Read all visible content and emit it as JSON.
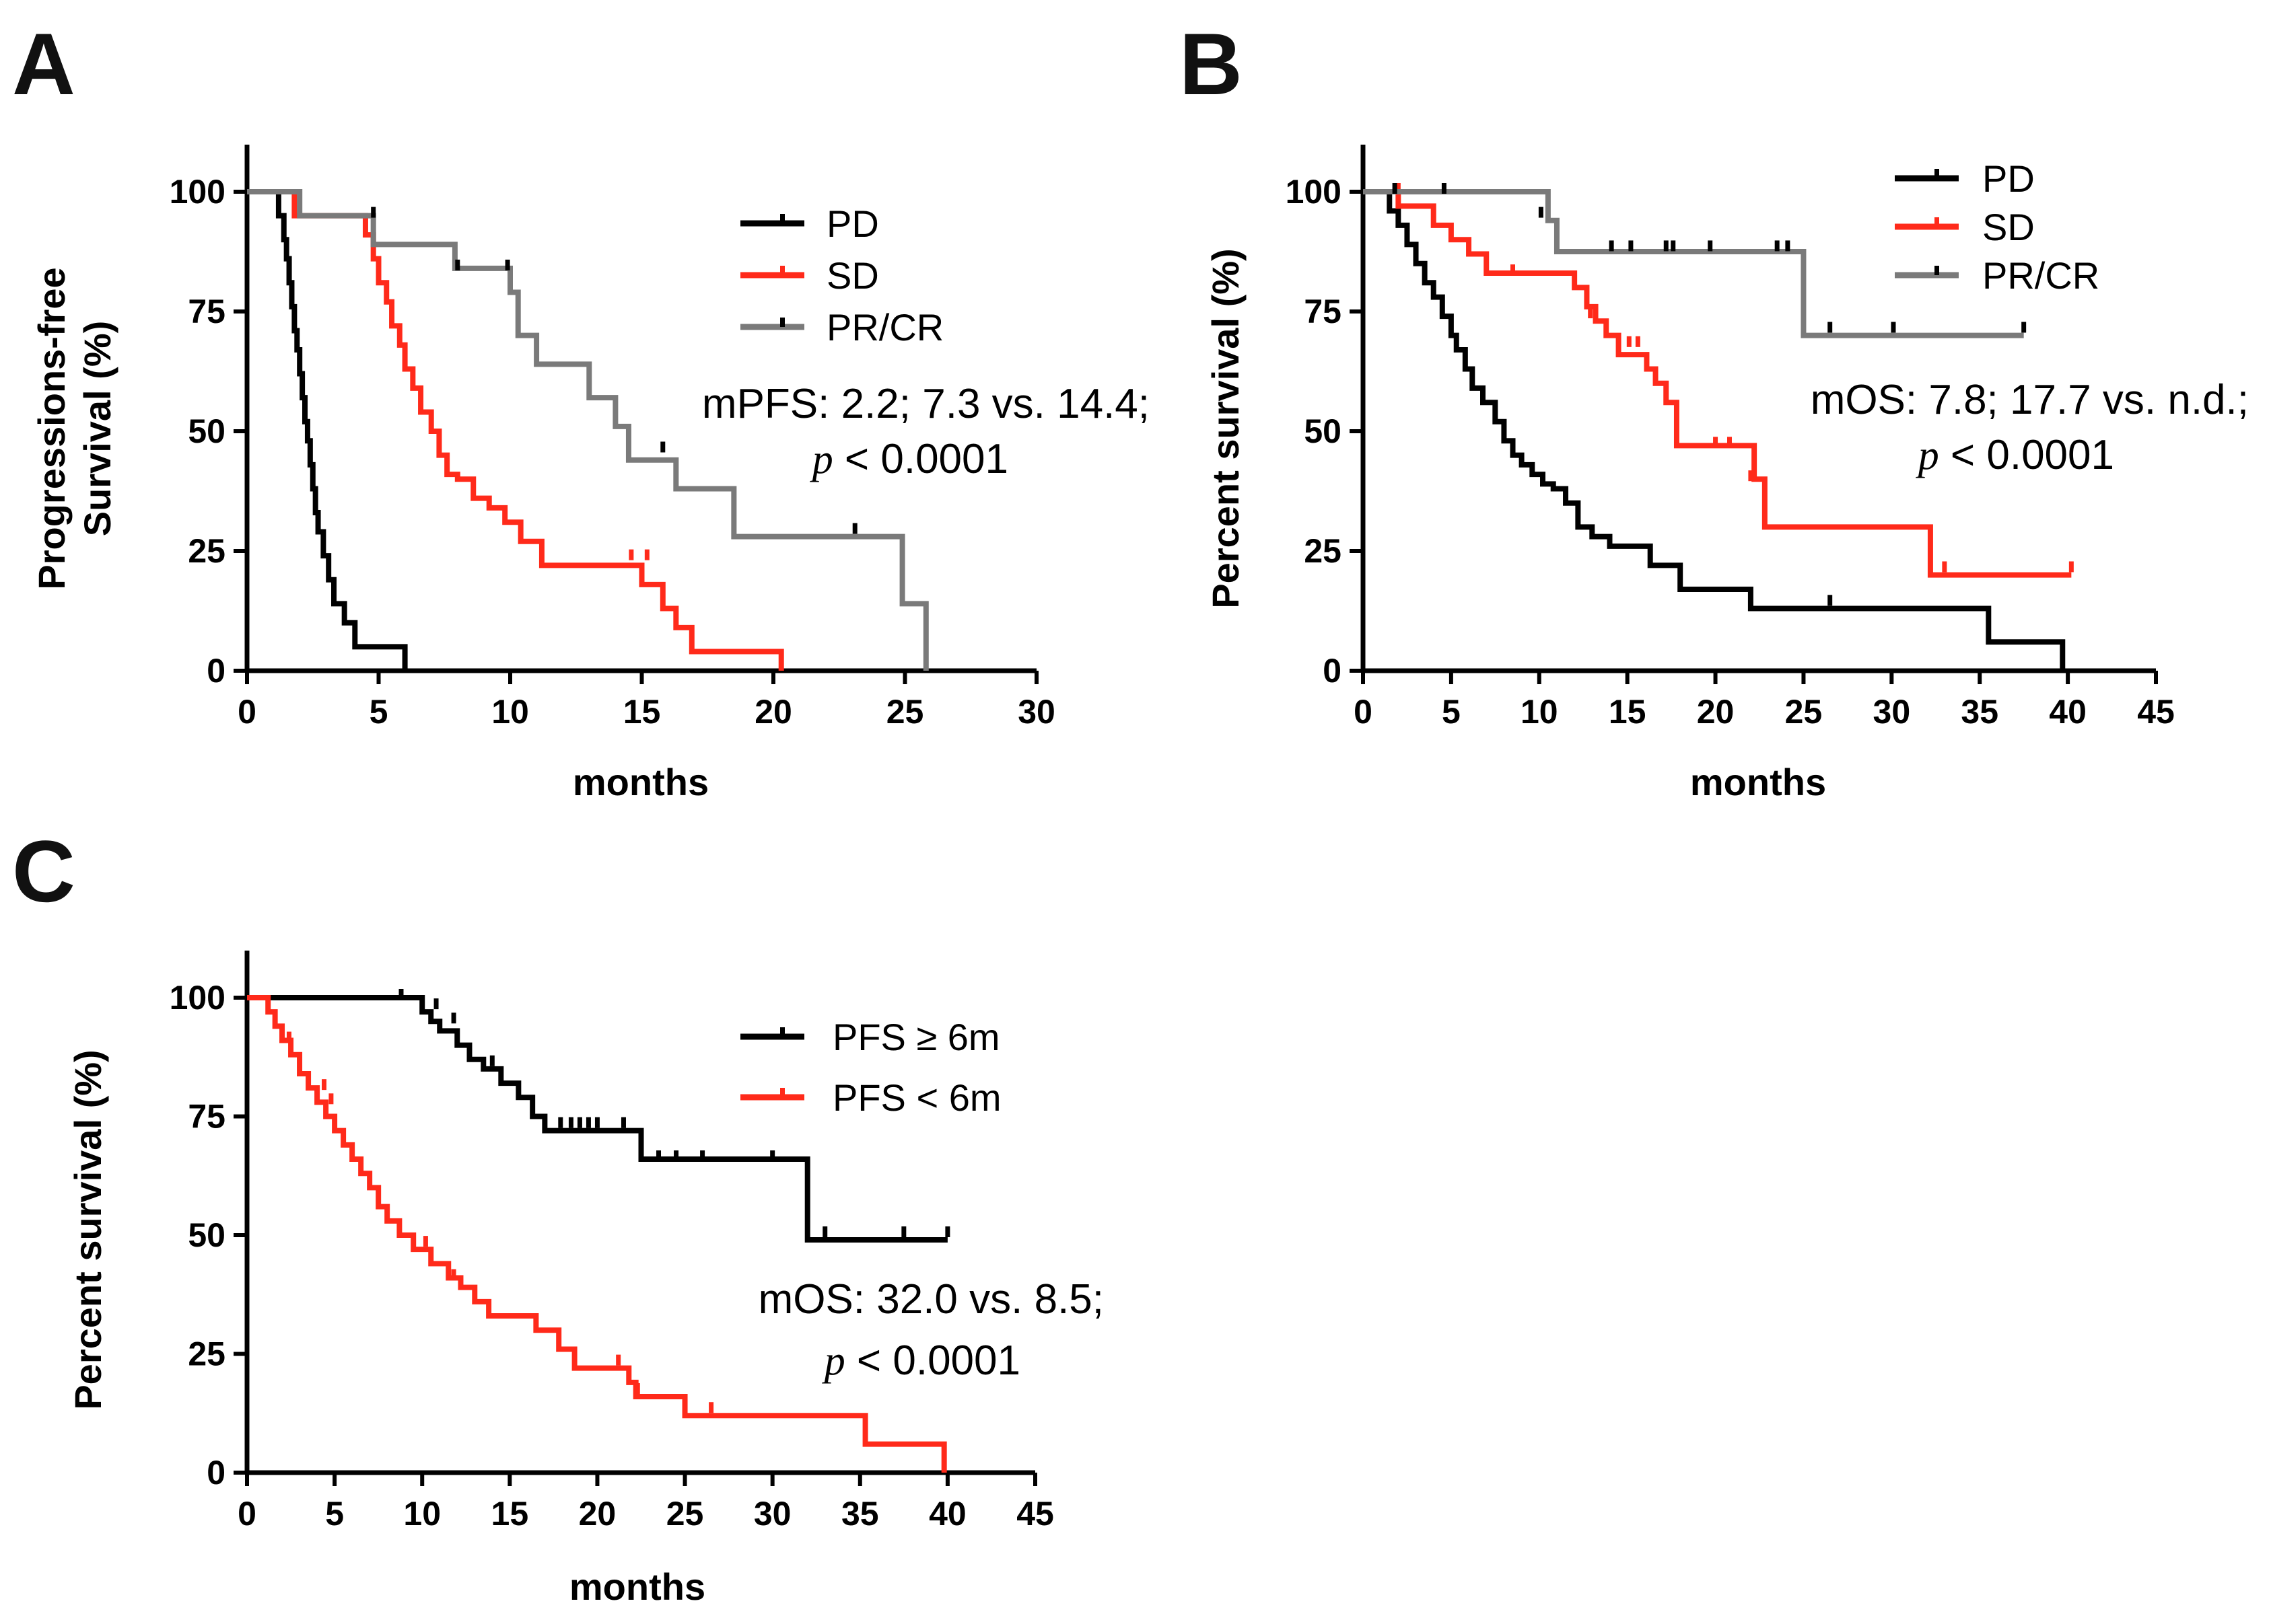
{
  "colors": {
    "PD": "#000000",
    "SD": "#ff2a1a",
    "PRCR": "#7a7a7a",
    "PFS_ge_6m": "#000000",
    "PFS_lt_6m": "#ff2a1a"
  },
  "chart_data": [
    {
      "panel": "A",
      "type": "line",
      "step": true,
      "xlabel": "months",
      "ylabel": [
        "Progressions-free",
        "Survival (%)"
      ],
      "xlim": [
        0,
        30
      ],
      "ylim": [
        0,
        110
      ],
      "xticks": [
        "0",
        "5",
        "10",
        "15",
        "20",
        "25",
        "30"
      ],
      "yticks": [
        "0",
        "25",
        "50",
        "75",
        "100"
      ],
      "legend_position": "top-right",
      "annotation": [
        "mPFS: 2.2; 7.3 vs. 14.4;",
        "p",
        " < 0.0001"
      ],
      "series": [
        {
          "name": "PD",
          "color": "#000000",
          "x": [
            0,
            1.2,
            1.4,
            1.5,
            1.6,
            1.7,
            1.8,
            1.9,
            2.0,
            2.1,
            2.2,
            2.3,
            2.4,
            2.5,
            2.6,
            2.7,
            2.9,
            3.1,
            3.3,
            3.7,
            4.1,
            6.0
          ],
          "y": [
            100,
            95,
            90,
            86,
            81,
            76,
            71,
            67,
            62,
            57,
            52,
            48,
            43,
            38,
            33,
            29,
            24,
            19,
            14,
            10,
            5,
            0
          ],
          "censor_x": [
            3.3
          ],
          "censor_y": [
            14
          ]
        },
        {
          "name": "SD",
          "color": "#ff2a1a",
          "x": [
            0,
            1.8,
            4.5,
            4.8,
            5.0,
            5.3,
            5.5,
            5.8,
            6.0,
            6.3,
            6.6,
            7.0,
            7.3,
            7.6,
            8.0,
            8.6,
            9.2,
            9.8,
            10.4,
            11.2,
            11.8,
            15.0,
            15.8,
            16.3,
            16.9,
            18.4,
            20.3
          ],
          "y": [
            100,
            95,
            91,
            86,
            81,
            77,
            72,
            68,
            63,
            59,
            54,
            50,
            45,
            41,
            40,
            36,
            34,
            31,
            27,
            22,
            22,
            18,
            13,
            9,
            4,
            4,
            0
          ],
          "censor_x": [
            9.2,
            14.6,
            15.2
          ],
          "censor_y": [
            34,
            23.5,
            23.5
          ]
        },
        {
          "name": "PR/CR",
          "color": "#7a7a7a",
          "x": [
            0,
            2.0,
            4.8,
            7.9,
            10.0,
            10.3,
            11.0,
            12.0,
            13.0,
            14.0,
            14.5,
            15.5,
            16.3,
            18.5,
            20.0,
            24.9,
            25.8
          ],
          "y": [
            100,
            95,
            89,
            84,
            79,
            70,
            64,
            64,
            57,
            51,
            44,
            44,
            38,
            28,
            28,
            14,
            0
          ],
          "censor_x": [
            4.8,
            8.0,
            9.9,
            15.8,
            23.1
          ],
          "censor_y": [
            95,
            84,
            84,
            46,
            29
          ]
        }
      ]
    },
    {
      "panel": "B",
      "type": "line",
      "step": true,
      "xlabel": "months",
      "ylabel": [
        "Percent survival (%)"
      ],
      "xlim": [
        0,
        45
      ],
      "ylim": [
        0,
        110
      ],
      "xticks": [
        "0",
        "5",
        "10",
        "15",
        "20",
        "25",
        "30",
        "35",
        "40",
        "45"
      ],
      "yticks": [
        "0",
        "25",
        "50",
        "75",
        "100"
      ],
      "legend_position": "top-right",
      "annotation": [
        "mOS: 7.8; 17.7 vs. n.d.;",
        "p",
        " < 0.0001"
      ],
      "series": [
        {
          "name": "PD",
          "color": "#000000",
          "x": [
            0,
            1.5,
            2.0,
            2.5,
            3.0,
            3.5,
            4.0,
            4.5,
            5.0,
            5.3,
            5.8,
            6.2,
            6.8,
            7.5,
            8.0,
            8.5,
            9.0,
            9.6,
            10.2,
            10.8,
            11.5,
            12.2,
            13.0,
            14.0,
            15.0,
            16.3,
            18.0,
            22.0,
            25.5,
            29.0,
            35.5,
            39.7
          ],
          "y": [
            100,
            96,
            93,
            89,
            85,
            81,
            78,
            74,
            70,
            67,
            63,
            59,
            56,
            52,
            48,
            45,
            43,
            41,
            39,
            38,
            35,
            30,
            28,
            26,
            26,
            22,
            17,
            13,
            13,
            13,
            6,
            0
          ],
          "censor_x": [
            26.5
          ],
          "censor_y": [
            14
          ]
        },
        {
          "name": "SD",
          "color": "#ff2a1a",
          "x": [
            0,
            2.0,
            4.0,
            5.0,
            6.0,
            7.0,
            8.0,
            9.0,
            12.0,
            12.7,
            13.2,
            13.8,
            14.5,
            16.1,
            16.6,
            17.2,
            17.8,
            19.5,
            21.5,
            22.2,
            22.8,
            32.2,
            40.2
          ],
          "y": [
            100,
            97,
            93,
            90,
            87,
            83,
            83,
            83,
            80,
            76,
            73,
            70,
            66,
            63,
            60,
            56,
            47,
            47,
            47,
            40,
            30,
            20,
            20
          ],
          "censor_x": [
            2.0,
            8.5,
            12.9,
            15.1,
            15.6,
            20.0,
            20.8,
            22.0,
            33.0,
            40.2
          ],
          "censor_y": [
            100,
            83,
            74,
            68,
            68,
            47,
            47,
            40,
            21,
            21
          ]
        },
        {
          "name": "PR/CR",
          "color": "#7a7a7a",
          "x": [
            0,
            10.0,
            10.5,
            11.0,
            25.0,
            37.5
          ],
          "y": [
            100,
            100,
            94,
            87.5,
            70,
            70
          ],
          "censor_x": [
            1.8,
            4.6,
            10.1,
            14.1,
            15.2,
            17.2,
            17.6,
            19.7,
            23.5,
            24.1,
            26.5,
            30.1,
            37.5
          ],
          "censor_y": [
            100,
            100,
            95,
            88,
            88,
            88,
            88,
            88,
            88,
            88,
            71,
            71,
            71
          ]
        }
      ]
    },
    {
      "panel": "C",
      "type": "line",
      "step": true,
      "xlabel": "months",
      "ylabel": [
        "Percent survival (%)"
      ],
      "xlim": [
        0,
        45
      ],
      "ylim": [
        0,
        100
      ],
      "xticks": [
        "0",
        "5",
        "10",
        "15",
        "20",
        "25",
        "30",
        "35",
        "40",
        "45"
      ],
      "yticks": [
        "0",
        "25",
        "50",
        "75",
        "100"
      ],
      "legend_position": "top-right",
      "annotation": [
        "mOS: 32.0 vs. 8.5;",
        "p",
        " < 0.0001"
      ],
      "series": [
        {
          "name": "PFS ≥ 6m",
          "color": "#000000",
          "x": [
            0,
            9.0,
            10.0,
            10.5,
            11.0,
            12.0,
            12.7,
            13.5,
            14.5,
            15.5,
            16.3,
            17.0,
            22.5,
            32.0,
            40.0
          ],
          "y": [
            100,
            100,
            97,
            95,
            93,
            90,
            87,
            85,
            82,
            79,
            75,
            72,
            66,
            49,
            49
          ],
          "censor_x": [
            8.8,
            10.8,
            11.8,
            14.0,
            17.9,
            18.5,
            19.0,
            19.5,
            20.0,
            21.5,
            23.5,
            24.5,
            26.0,
            30.0,
            33.0,
            37.5,
            40.0
          ],
          "censor_y": [
            100,
            98,
            95,
            86,
            73,
            73,
            73,
            73,
            73,
            73,
            66,
            66,
            66,
            66,
            50,
            50,
            50
          ]
        },
        {
          "name": "PFS < 6m",
          "color": "#ff2a1a",
          "x": [
            0,
            1.2,
            1.6,
            2.0,
            2.5,
            3.0,
            3.5,
            4.0,
            4.5,
            5.0,
            5.5,
            6.0,
            6.5,
            7.0,
            7.5,
            8.0,
            8.7,
            9.5,
            10.5,
            11.5,
            12.2,
            13.0,
            13.8,
            16.5,
            17.8,
            18.7,
            21.8,
            22.2,
            25.0,
            35.3,
            39.8
          ],
          "y": [
            100,
            97,
            94,
            91,
            88,
            84,
            81,
            78,
            75,
            72,
            69,
            66,
            63,
            60,
            56,
            53,
            50,
            47,
            44,
            41,
            39,
            36,
            33,
            30,
            26,
            22,
            19,
            16,
            12,
            6,
            0
          ],
          "censor_x": [
            2.4,
            4.4,
            4.8,
            9.5,
            10.2,
            11.8,
            21.2,
            22.3,
            26.5
          ],
          "censor_y": [
            91,
            81,
            78,
            48,
            48,
            41,
            23,
            17,
            13
          ]
        }
      ]
    }
  ]
}
